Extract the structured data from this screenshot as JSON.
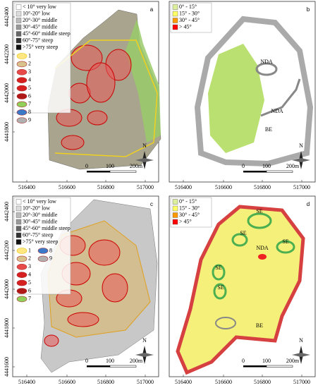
{
  "panels": [
    {
      "letter": "a",
      "slope_legend": [
        "< 10° very low",
        "10°-20° low",
        "20°-30° middle",
        "30°-45° middle",
        "45°-60° middle steep",
        "60°-75° steep",
        ">75° very steep"
      ],
      "symbol_legend": [
        "1",
        "2",
        "3",
        "4",
        "5",
        "6",
        "7",
        "8",
        "9"
      ],
      "labels": [],
      "y_ticks": [
        4442400,
        4442200,
        4442000,
        4441800
      ],
      "x_ticks": [
        516400,
        516600,
        516800,
        517000
      ],
      "scale": [
        "0",
        "100",
        "200m"
      ],
      "north": "N"
    },
    {
      "letter": "b",
      "slope_legend": [
        "0° - 15°",
        "15° - 30°",
        "30° - 45°",
        "> 45°"
      ],
      "symbol_legend": [],
      "labels": [
        "NDA",
        "NDA",
        "BE"
      ],
      "y_ticks": [],
      "x_ticks": [
        516400,
        516600,
        516800,
        517000
      ],
      "scale": [
        "0",
        "100",
        "200m"
      ],
      "north": "N"
    },
    {
      "letter": "c",
      "slope_legend": [
        "< 10° very low",
        "10°-20° low",
        "20°-30° middle",
        "30°-45° middle",
        "45°-60° middle steep",
        "60°-75° steep",
        ">75° very steep"
      ],
      "symbol_legend": [
        "1",
        "2",
        "3",
        "4",
        "5",
        "6",
        "7",
        "8",
        "9"
      ],
      "labels": [],
      "y_ticks": [
        4442400,
        4442200,
        4442000,
        4441800,
        4441600
      ],
      "x_ticks": [
        516400,
        516600,
        516800,
        517000
      ],
      "scale": [
        "0",
        "100",
        "200m"
      ],
      "north": "N"
    },
    {
      "letter": "d",
      "slope_legend": [
        "0° - 15°",
        "15° - 30°",
        "30° - 45°",
        "> 45°"
      ],
      "symbol_legend": [],
      "labels": [
        "SE",
        "SE",
        "SE",
        "NDA",
        "SE",
        "SE",
        "BE"
      ],
      "y_ticks": [],
      "x_ticks": [
        516400,
        516600,
        516800,
        517000
      ],
      "scale": [
        "0",
        "100",
        "200m"
      ],
      "north": "N"
    }
  ]
}
